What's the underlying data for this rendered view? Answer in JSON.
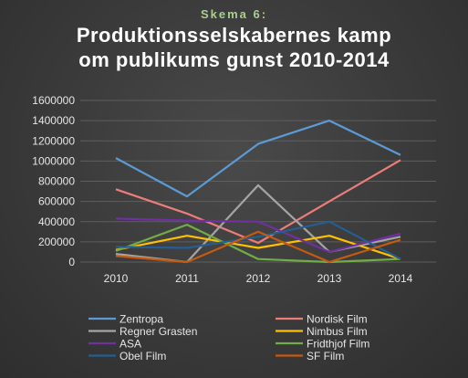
{
  "chart_data": {
    "type": "line",
    "subtitle": "Skema 6:",
    "title_lines": [
      "Produktionsselskabernes kamp",
      "om publikums gunst 2010-2014"
    ],
    "xlabel": "",
    "ylabel": "",
    "categories": [
      "2010",
      "2011",
      "2012",
      "2013",
      "2014"
    ],
    "ylim": [
      0,
      1600000
    ],
    "yticks": [
      "0",
      "200000",
      "400000",
      "600000",
      "800000",
      "1000000",
      "1200000",
      "1400000",
      "1600000"
    ],
    "grid": true,
    "legend_position": "bottom",
    "series": [
      {
        "name": "Zentropa",
        "color": "#5b9bd5",
        "values": [
          1030000,
          650000,
          1170000,
          1400000,
          1060000
        ]
      },
      {
        "name": "Nordisk Film",
        "color": "#ed7d79",
        "values": [
          720000,
          480000,
          190000,
          600000,
          1010000
        ]
      },
      {
        "name": "Regner Grasten",
        "color": "#a5a5a5",
        "values": [
          80000,
          0,
          760000,
          100000,
          250000
        ]
      },
      {
        "name": "Nimbus Film",
        "color": "#ffc000",
        "values": [
          120000,
          260000,
          140000,
          260000,
          30000
        ]
      },
      {
        "name": "ASA",
        "color": "#7030a0",
        "values": [
          430000,
          410000,
          400000,
          100000,
          280000
        ]
      },
      {
        "name": "Fridthjof Film",
        "color": "#70ad47",
        "values": [
          110000,
          370000,
          30000,
          0,
          30000
        ]
      },
      {
        "name": "Obel Film",
        "color": "#255e91",
        "values": [
          150000,
          140000,
          250000,
          400000,
          30000
        ]
      },
      {
        "name": "SF Film",
        "color": "#c55a11",
        "values": [
          60000,
          0,
          300000,
          0,
          220000
        ]
      }
    ]
  }
}
